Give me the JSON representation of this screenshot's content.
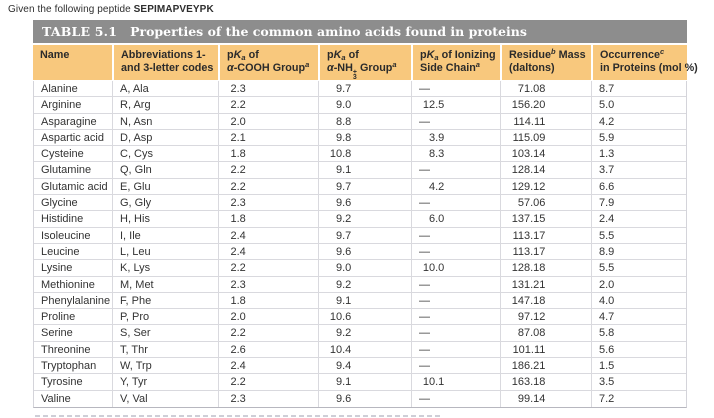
{
  "intro": {
    "prefix": "Given the following peptide ",
    "peptide": "SEPIMAPVEYPK"
  },
  "table": {
    "label": "TABLE 5.1",
    "title": "Properties of the common amino acids found in proteins",
    "headers": {
      "name": "Name",
      "abbrev": {
        "line1": "Abbreviations 1-",
        "line2": "and 3-letter codes"
      },
      "pka_cooh": {
        "p": "p",
        "k": "K",
        "sub": "a",
        "of": " of",
        "alpha": "α",
        "group": "-COOH Group",
        "sup": "a"
      },
      "pka_nh3": {
        "p": "p",
        "k": "K",
        "sub": "a",
        "of": " of",
        "alpha": "α",
        "nh": "-NH",
        "plus": "+",
        "three": "3",
        "group": " Group",
        "sup": "a"
      },
      "pka_side": {
        "p": "p",
        "k": "K",
        "sub": "a",
        "of": " of Ionizing",
        "line2": "Side Chain",
        "sup": "a"
      },
      "residue": {
        "word": "Residue",
        "sup": "b",
        "mass": " Mass",
        "line2": "(daltons)"
      },
      "occurrence": {
        "word": "Occurrence",
        "sup": "c",
        "line2": "in Proteins (mol %)"
      }
    },
    "rows": [
      [
        "Alanine",
        "A, Ala",
        "2.3",
        "9.7",
        "—",
        "71.08",
        "8.7"
      ],
      [
        "Arginine",
        "R, Arg",
        "2.2",
        "9.0",
        "12.5",
        "156.20",
        "5.0"
      ],
      [
        "Asparagine",
        "N, Asn",
        "2.0",
        "8.8",
        "—",
        "114.11",
        "4.2"
      ],
      [
        "Aspartic acid",
        "D, Asp",
        "2.1",
        "9.8",
        "3.9",
        "115.09",
        "5.9"
      ],
      [
        "Cysteine",
        "C, Cys",
        "1.8",
        "10.8",
        "8.3",
        "103.14",
        "1.3"
      ],
      [
        "Glutamine",
        "Q, Gln",
        "2.2",
        "9.1",
        "—",
        "128.14",
        "3.7"
      ],
      [
        "Glutamic acid",
        "E, Glu",
        "2.2",
        "9.7",
        "4.2",
        "129.12",
        "6.6"
      ],
      [
        "Glycine",
        "G, Gly",
        "2.3",
        "9.6",
        "—",
        "57.06",
        "7.9"
      ],
      [
        "Histidine",
        "H, His",
        "1.8",
        "9.2",
        "6.0",
        "137.15",
        "2.4"
      ],
      [
        "Isoleucine",
        "I, Ile",
        "2.4",
        "9.7",
        "—",
        "113.17",
        "5.5"
      ],
      [
        "Leucine",
        "L, Leu",
        "2.4",
        "9.6",
        "—",
        "113.17",
        "8.9"
      ],
      [
        "Lysine",
        "K, Lys",
        "2.2",
        "9.0",
        "10.0",
        "128.18",
        "5.5"
      ],
      [
        "Methionine",
        "M, Met",
        "2.3",
        "9.2",
        "—",
        "131.21",
        "2.0"
      ],
      [
        "Phenylalanine",
        "F, Phe",
        "1.8",
        "9.1",
        "—",
        "147.18",
        "4.0"
      ],
      [
        "Proline",
        "P, Pro",
        "2.0",
        "10.6",
        "—",
        "97.12",
        "4.7"
      ],
      [
        "Serine",
        "S, Ser",
        "2.2",
        "9.2",
        "—",
        "87.08",
        "5.8"
      ],
      [
        "Threonine",
        "T, Thr",
        "2.6",
        "10.4",
        "—",
        "101.11",
        "5.6"
      ],
      [
        "Tryptophan",
        "W, Trp",
        "2.4",
        "9.4",
        "—",
        "186.21",
        "1.5"
      ],
      [
        "Tyrosine",
        "Y, Tyr",
        "2.2",
        "9.1",
        "10.1",
        "163.18",
        "3.5"
      ],
      [
        "Valine",
        "V, Val",
        "2.3",
        "9.6",
        "—",
        "99.14",
        "7.2"
      ]
    ]
  },
  "colors": {
    "title_bar": "#8d8d8d",
    "header_bg": "#f8c87d",
    "grid_line": "#d9d9de",
    "body_text": "#333333"
  }
}
